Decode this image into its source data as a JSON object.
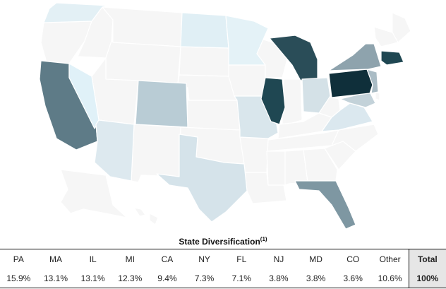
{
  "title": {
    "text": "State Diversification",
    "footnote": "(1)"
  },
  "table": {
    "columns": [
      "PA",
      "MA",
      "IL",
      "MI",
      "CA",
      "NY",
      "FL",
      "NJ",
      "MD",
      "CO",
      "Other",
      "Total"
    ],
    "values": [
      "15.9%",
      "13.1%",
      "13.1%",
      "12.3%",
      "9.4%",
      "7.3%",
      "7.1%",
      "3.8%",
      "3.8%",
      "3.6%",
      "10.6%",
      "100%"
    ]
  },
  "chart_data": {
    "type": "choropleth",
    "title": "State Diversification",
    "regions": [
      {
        "state": "PA",
        "value": 15.9
      },
      {
        "state": "MA",
        "value": 13.1
      },
      {
        "state": "IL",
        "value": 13.1
      },
      {
        "state": "MI",
        "value": 12.3
      },
      {
        "state": "CA",
        "value": 9.4
      },
      {
        "state": "NY",
        "value": 7.3
      },
      {
        "state": "FL",
        "value": 7.1
      },
      {
        "state": "NJ",
        "value": 3.8
      },
      {
        "state": "MD",
        "value": 3.8
      },
      {
        "state": "CO",
        "value": 3.6
      },
      {
        "state": "Other",
        "value": 10.6
      }
    ],
    "total": "100%",
    "colors": {
      "PA": "#0f2f3a",
      "MA": "#1f4752",
      "IL": "#1f4752",
      "MI": "#2a4d58",
      "CA": "#5e7b87",
      "NY": "#8ea3ad",
      "FL": "#7e97a2",
      "NJ": "#aabcc5",
      "MD": "#c3d2d9",
      "CO": "#b9ccd5",
      "OH": "#d4e1e7",
      "TX": "#d5e3ea",
      "AZ": "#dde9ef",
      "MO": "#d9e6ec",
      "VA": "#dbe8ef",
      "WA": "#e3f0f5",
      "NV": "#e0f1f8",
      "ND": "#e0eff5",
      "MN": "#e4f2f7",
      "base": "#f6f6f6",
      "stroke": "#ffffff"
    }
  }
}
